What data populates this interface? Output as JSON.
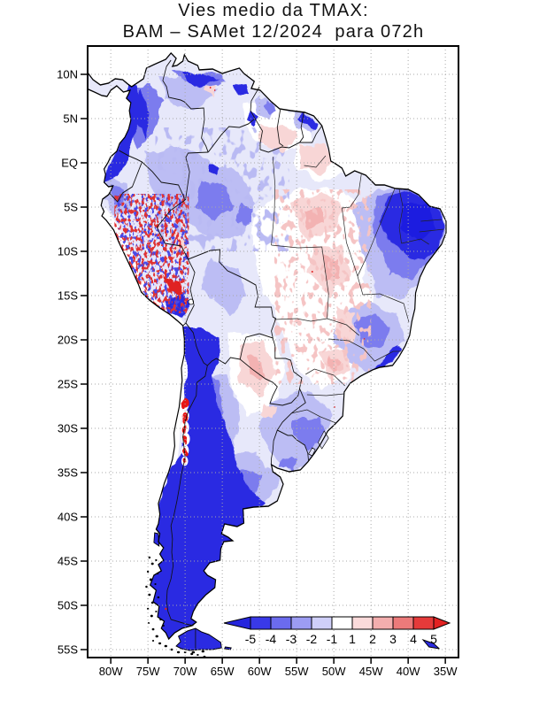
{
  "title": {
    "line1": "Vies medio da TMAX:",
    "line2": "BAM – SAMet 12/2024  para 072h"
  },
  "axes": {
    "lat_ticks": [
      {
        "label": "10N",
        "lat": 10
      },
      {
        "label": "5N",
        "lat": 5
      },
      {
        "label": "EQ",
        "lat": 0
      },
      {
        "label": "5S",
        "lat": -5
      },
      {
        "label": "10S",
        "lat": -10
      },
      {
        "label": "15S",
        "lat": -15
      },
      {
        "label": "20S",
        "lat": -20
      },
      {
        "label": "25S",
        "lat": -25
      },
      {
        "label": "30S",
        "lat": -30
      },
      {
        "label": "35S",
        "lat": -35
      },
      {
        "label": "40S",
        "lat": -40
      },
      {
        "label": "45S",
        "lat": -45
      },
      {
        "label": "50S",
        "lat": -50
      },
      {
        "label": "55S",
        "lat": -55
      }
    ],
    "lon_ticks": [
      {
        "label": "80W",
        "lon": -80
      },
      {
        "label": "75W",
        "lon": -75
      },
      {
        "label": "70W",
        "lon": -70
      },
      {
        "label": "65W",
        "lon": -65
      },
      {
        "label": "60W",
        "lon": -60
      },
      {
        "label": "55W",
        "lon": -55
      },
      {
        "label": "50W",
        "lon": -50
      },
      {
        "label": "45W",
        "lon": -45
      },
      {
        "label": "40W",
        "lon": -40
      },
      {
        "label": "35W",
        "lon": -35
      }
    ]
  },
  "colorbar": {
    "labels": [
      "-5",
      "-4",
      "-3",
      "-2",
      "-1",
      "1",
      "2",
      "3",
      "4",
      "5"
    ],
    "cells": [
      "#3939e8",
      "#6b6bee",
      "#9c9cf3",
      "#cfcff9",
      "#ffffff",
      "#fadada",
      "#f3aeae",
      "#ec7a7a",
      "#e53a3a"
    ],
    "arrow_left": "#2626dd",
    "arrow_right": "#e32222"
  },
  "chart_data": {
    "type": "heatmap",
    "title": "Vies medio da TMAX: BAM – SAMet 12/2024 para 072h",
    "variable": "Mean bias of TMAX (BAM model minus SAMet analysis)",
    "model": "BAM",
    "reference": "SAMet",
    "period": "12/2024",
    "lead_time": "072h",
    "region": "South America",
    "lat_range": [
      "10N",
      "55S"
    ],
    "lon_range": [
      "80W",
      "35W"
    ],
    "scale_values": [
      -5,
      -4,
      -3,
      -2,
      -1,
      1,
      2,
      3,
      4,
      5
    ],
    "scale_colors": [
      "#2626dd",
      "#3939e8",
      "#6b6bee",
      "#9c9cf3",
      "#cfcff9",
      "#ffffff",
      "#fadada",
      "#f3aeae",
      "#ec7a7a",
      "#e53a3a",
      "#e32222"
    ],
    "summary": "Negative (cold, blue) bias over the Andes, Patagonia, northern South America and Northeast Brazil; positive (warm, red) bias patches over central Brazil, the Peruvian Andes and central Chile."
  }
}
